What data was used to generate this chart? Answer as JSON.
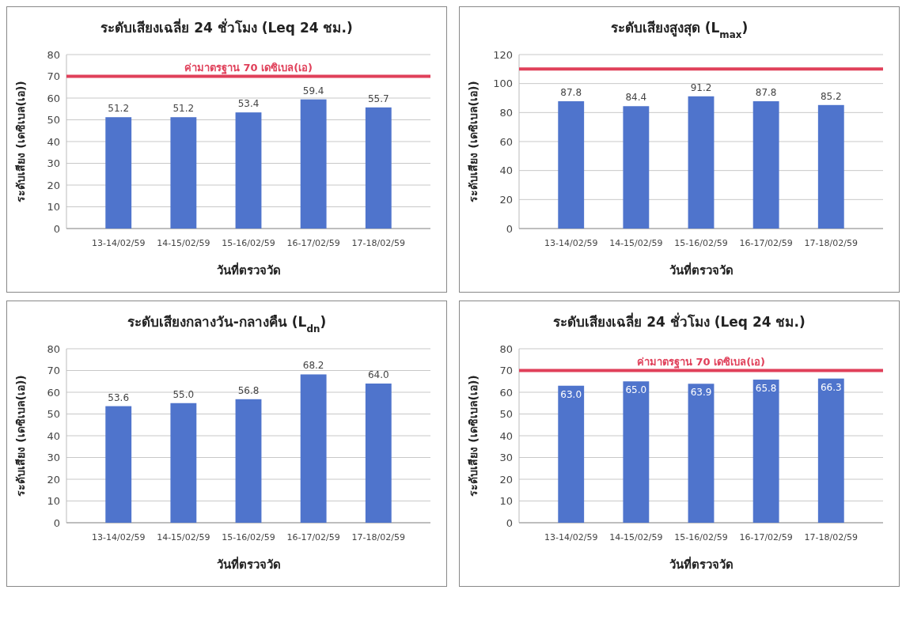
{
  "chart_data": [
    {
      "type": "bar",
      "title": "ระดับเสียงเฉลี่ย 24 ชั่วโมง (Leq 24 ชม.)",
      "xlabel": "วันที่ตรวจวัด",
      "ylabel": "ระดับเสียง (เดซิเบล(เอ))",
      "categories": [
        "13-14/02/59",
        "14-15/02/59",
        "15-16/02/59",
        "16-17/02/59",
        "17-18/02/59"
      ],
      "values": [
        51.2,
        51.2,
        53.4,
        59.4,
        55.7
      ],
      "color": "#4f74cc",
      "ylim": [
        0,
        80
      ],
      "yticks": [
        0,
        10,
        20,
        30,
        40,
        50,
        60,
        70,
        80
      ],
      "grid": "y",
      "data_labels": true,
      "ref_lines": [
        {
          "axis": "y",
          "value": 70,
          "label": "ค่ามาตรฐาน 70 เดซิเบล(เอ)",
          "color": "#e0405a"
        }
      ]
    },
    {
      "type": "bar",
      "title": "ระดับเสียงสูงสุด (L$_{max}$)",
      "xlabel": "วันที่ตรวจวัด",
      "ylabel": "ระดับเสียง (เดซิเบล(เอ))",
      "categories": [
        "13-14/02/59",
        "14-15/02/59",
        "15-16/02/59",
        "16-17/02/59",
        "17-18/02/59"
      ],
      "values": [
        87.8,
        84.4,
        91.2,
        87.8,
        85.2
      ],
      "color": "#4f74cc",
      "ylim": [
        0,
        120
      ],
      "yticks": [
        0,
        20,
        40,
        60,
        80,
        100,
        120
      ],
      "grid": "y",
      "data_labels": true,
      "ref_lines": [
        {
          "axis": "y",
          "value": 110,
          "color": "#e0405a"
        }
      ]
    },
    {
      "type": "bar",
      "title": "ระดับเสียงกลางวัน-กลางคืน (L$_{dn}$)",
      "xlabel": "วันที่ตรวจวัด",
      "ylabel": "ระดับเสียง (เดซิเบล(เอ))",
      "categories": [
        "13-14/02/59",
        "14-15/02/59",
        "15-16/02/59",
        "16-17/02/59",
        "17-18/02/59"
      ],
      "values": [
        53.6,
        55.0,
        56.8,
        68.2,
        64.0
      ],
      "value_labels": [
        "53.6",
        "55.0",
        "56.8",
        "68.2",
        "64.0"
      ],
      "color": "#4f74cc",
      "ylim": [
        0,
        80
      ],
      "yticks": [
        0,
        10,
        20,
        30,
        40,
        50,
        60,
        70,
        80
      ],
      "grid": "y"
    },
    {
      "type": "bar",
      "title": "ระดับเสียงเฉลี่ย 24 ชั่วโมง (Leq 24 ชม.)",
      "xlabel": "วันที่ตรวจวัด",
      "ylabel": "ระดับเสียง (เดซิเบล(เอ))",
      "categories": [
        "13-14/02/59",
        "14-15/02/59",
        "15-16/02/59",
        "16-17/02/59",
        "17-18/02/59"
      ],
      "values": [
        63.0,
        65.0,
        63.9,
        65.8,
        66.3
      ],
      "value_labels": [
        "63.0",
        "65.0",
        "63.9",
        "65.8",
        "66.3"
      ],
      "color": "#4f74cc",
      "ylim": [
        0,
        80
      ],
      "yticks": [
        0,
        10,
        20,
        30,
        40,
        50,
        60,
        70,
        80
      ],
      "grid": "y",
      "ref_lines": [
        {
          "axis": "y",
          "value": 70,
          "label": "ค่ามาตรฐาน 70 เดซิเบล(เอ)",
          "color": "#e0405a"
        }
      ]
    }
  ]
}
